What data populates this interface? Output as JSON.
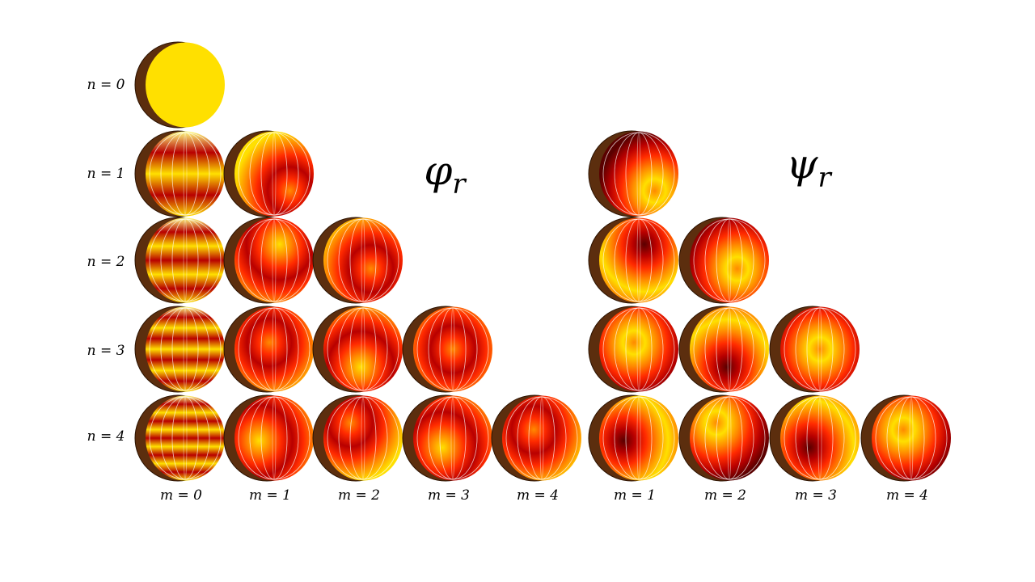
{
  "titles": {
    "phi": "φ",
    "phi_sub": "r",
    "psi": "ψ",
    "psi_sub": "r"
  },
  "row_labels": [
    "n = 0",
    "n = 1",
    "n = 2",
    "n = 3",
    "n = 4"
  ],
  "phi_col_labels": [
    "m = 0",
    "m = 1",
    "m = 2",
    "m = 3",
    "m = 4"
  ],
  "psi_col_labels": [
    "m = 1",
    "m = 2",
    "m = 3",
    "m = 4"
  ],
  "colormap": [
    "#5a0000",
    "#b80000",
    "#ff2a00",
    "#ff8a00",
    "#ffe000",
    "#ffff80"
  ],
  "shell_color": "#5c2e0e",
  "phi_panels": [
    [
      0,
      0
    ],
    [
      1,
      0
    ],
    [
      1,
      1
    ],
    [
      2,
      0
    ],
    [
      2,
      1
    ],
    [
      2,
      2
    ],
    [
      3,
      0
    ],
    [
      3,
      1
    ],
    [
      3,
      2
    ],
    [
      3,
      3
    ],
    [
      4,
      0
    ],
    [
      4,
      1
    ],
    [
      4,
      2
    ],
    [
      4,
      3
    ],
    [
      4,
      4
    ]
  ],
  "psi_panels": [
    [
      1,
      1
    ],
    [
      2,
      1
    ],
    [
      2,
      2
    ],
    [
      3,
      1
    ],
    [
      3,
      2
    ],
    [
      3,
      3
    ],
    [
      4,
      1
    ],
    [
      4,
      2
    ],
    [
      4,
      3
    ],
    [
      4,
      4
    ]
  ]
}
